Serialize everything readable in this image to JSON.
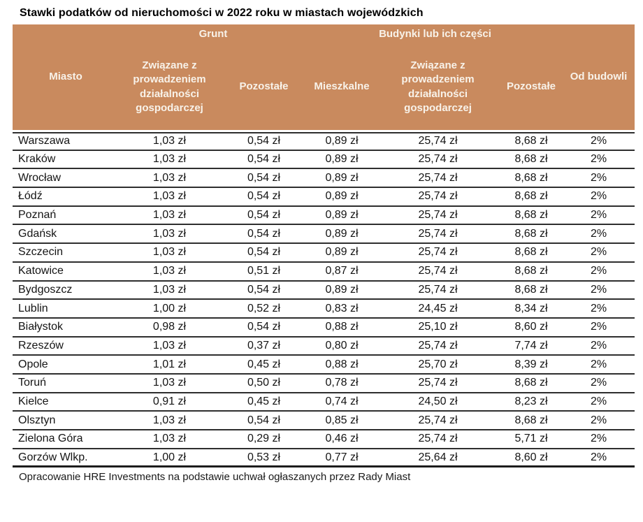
{
  "title": "Stawki podatków od nieruchomości w 2022 roku w miastach wojewódzkich",
  "colors": {
    "header_bg": "#C98A5E",
    "header_text": "#F8F2E9",
    "row_border": "#2e2e2e"
  },
  "table": {
    "group_headers": {
      "grunt": "Grunt",
      "budynki": "Budynki lub ich części"
    },
    "columns": {
      "miasto": "Miasto",
      "grunt_dzialalnosc": "Związane z prowadzeniem działalności gospodarczej",
      "grunt_pozostale": "Pozostałe",
      "mieszkalne": "Mieszkalne",
      "budynki_dzialalnosc": "Związane z prowadzeniem działalności gospodarczej",
      "budynki_pozostale": "Pozostałe",
      "od_budowli": "Od budowli"
    },
    "rows": [
      {
        "city": "Warszawa",
        "values": [
          "1,03 zł",
          "0,54 zł",
          "0,89 zł",
          "25,74 zł",
          "8,68 zł",
          "2%"
        ]
      },
      {
        "city": "Kraków",
        "values": [
          "1,03 zł",
          "0,54 zł",
          "0,89 zł",
          "25,74 zł",
          "8,68 zł",
          "2%"
        ]
      },
      {
        "city": "Wrocław",
        "values": [
          "1,03 zł",
          "0,54 zł",
          "0,89 zł",
          "25,74 zł",
          "8,68 zł",
          "2%"
        ]
      },
      {
        "city": "Łódź",
        "values": [
          "1,03 zł",
          "0,54 zł",
          "0,89 zł",
          "25,74 zł",
          "8,68 zł",
          "2%"
        ]
      },
      {
        "city": "Poznań",
        "values": [
          "1,03 zł",
          "0,54 zł",
          "0,89 zł",
          "25,74 zł",
          "8,68 zł",
          "2%"
        ]
      },
      {
        "city": "Gdańsk",
        "values": [
          "1,03 zł",
          "0,54 zł",
          "0,89 zł",
          "25,74 zł",
          "8,68 zł",
          "2%"
        ]
      },
      {
        "city": "Szczecin",
        "values": [
          "1,03 zł",
          "0,54 zł",
          "0,89 zł",
          "25,74 zł",
          "8,68 zł",
          "2%"
        ]
      },
      {
        "city": "Katowice",
        "values": [
          "1,03 zł",
          "0,51 zł",
          "0,87 zł",
          "25,74 zł",
          "8,68 zł",
          "2%"
        ]
      },
      {
        "city": "Bydgoszcz",
        "values": [
          "1,03 zł",
          "0,54 zł",
          "0,89 zł",
          "25,74 zł",
          "8,68 zł",
          "2%"
        ]
      },
      {
        "city": "Lublin",
        "values": [
          "1,00 zł",
          "0,52 zł",
          "0,83 zł",
          "24,45 zł",
          "8,34 zł",
          "2%"
        ]
      },
      {
        "city": "Białystok",
        "values": [
          "0,98 zł",
          "0,54 zł",
          "0,88 zł",
          "25,10 zł",
          "8,60 zł",
          "2%"
        ]
      },
      {
        "city": "Rzeszów",
        "values": [
          "1,03 zł",
          "0,37 zł",
          "0,80 zł",
          "25,74 zł",
          "7,74 zł",
          "2%"
        ]
      },
      {
        "city": "Opole",
        "values": [
          "1,01 zł",
          "0,45 zł",
          "0,88 zł",
          "25,70 zł",
          "8,39 zł",
          "2%"
        ]
      },
      {
        "city": "Toruń",
        "values": [
          "1,03 zł",
          "0,50 zł",
          "0,78 zł",
          "25,74 zł",
          "8,68 zł",
          "2%"
        ]
      },
      {
        "city": "Kielce",
        "values": [
          "0,91 zł",
          "0,45 zł",
          "0,74 zł",
          "24,50 zł",
          "8,23 zł",
          "2%"
        ]
      },
      {
        "city": "Olsztyn",
        "values": [
          "1,03 zł",
          "0,54 zł",
          "0,85 zł",
          "25,74 zł",
          "8,68 zł",
          "2%"
        ]
      },
      {
        "city": "Zielona Góra",
        "values": [
          "1,03 zł",
          "0,29 zł",
          "0,46 zł",
          "25,74 zł",
          "5,71 zł",
          "2%"
        ]
      },
      {
        "city": "Gorzów Wlkp.",
        "values": [
          "1,00 zł",
          "0,53 zł",
          "0,77 zł",
          "25,64 zł",
          "8,60 zł",
          "2%"
        ]
      }
    ]
  },
  "footer": "Opracowanie HRE Investments na podstawie uchwał ogłaszanych przez Rady Miast"
}
